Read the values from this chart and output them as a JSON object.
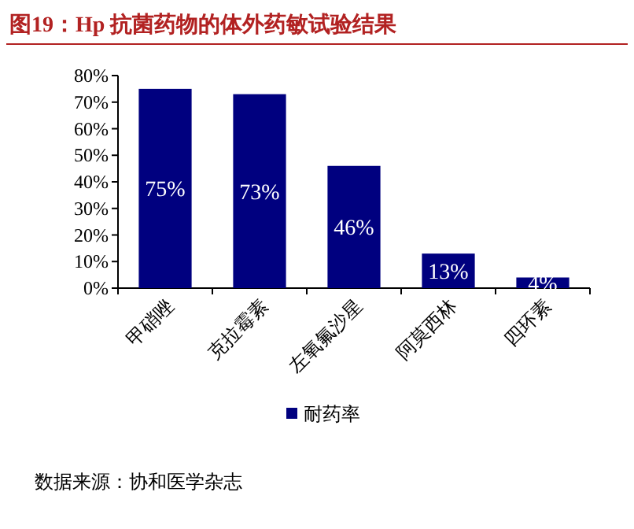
{
  "chart_data": {
    "type": "bar",
    "title": "图19：Hp 抗菌药物的体外药敏试验结果",
    "categories": [
      "甲硝唑",
      "克拉霉素",
      "左氧氟沙星",
      "阿莫西林",
      "四环素"
    ],
    "series": [
      {
        "name": "耐药率",
        "color": "#00007f",
        "values": [
          75,
          73,
          46,
          13,
          4
        ],
        "value_labels": [
          "75%",
          "73%",
          "46%",
          "13%",
          "4%"
        ]
      }
    ],
    "ylim": [
      0,
      80
    ],
    "yticks": [
      {
        "value": 0,
        "label": "0%"
      },
      {
        "value": 10,
        "label": "10%"
      },
      {
        "value": 20,
        "label": "20%"
      },
      {
        "value": 30,
        "label": "30%"
      },
      {
        "value": 40,
        "label": "40%"
      },
      {
        "value": 50,
        "label": "50%"
      },
      {
        "value": 60,
        "label": "60%"
      },
      {
        "value": 70,
        "label": "70%"
      },
      {
        "value": 80,
        "label": "80%"
      }
    ],
    "legend": "bottom",
    "grid": false,
    "annotations": [
      "数据来源：协和医学杂志"
    ]
  }
}
